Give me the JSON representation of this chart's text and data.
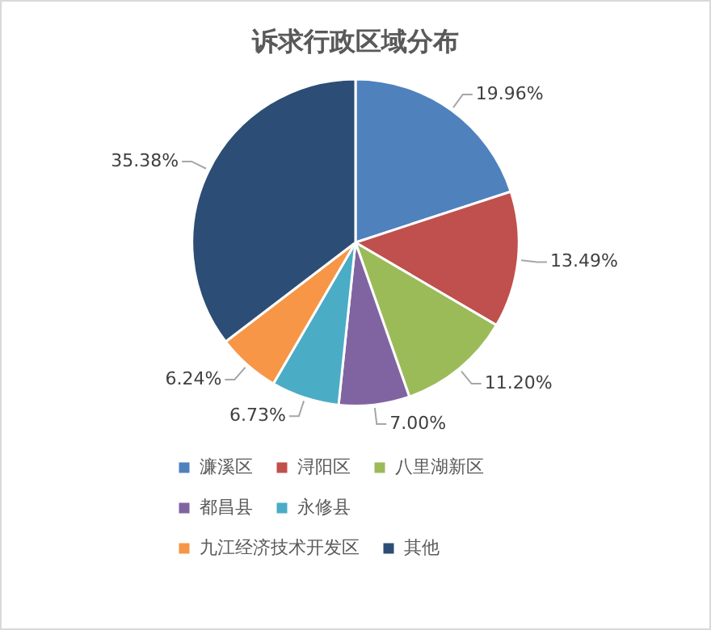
{
  "chart_data": {
    "type": "pie",
    "title": "诉求行政区域分布",
    "categories": [
      "濂溪区",
      "浔阳区",
      "八里湖新区",
      "都昌县",
      "永修县",
      "九江经济技术开发区",
      "其他"
    ],
    "values": [
      19.96,
      13.49,
      11.2,
      7.0,
      6.73,
      6.24,
      35.38
    ],
    "value_labels": [
      "19.96%",
      "13.49%",
      "11.20%",
      "7.00%",
      "6.73%",
      "6.24%",
      "35.38%"
    ],
    "colors": [
      "#4f81bd",
      "#c0504d",
      "#9bbb59",
      "#8064a2",
      "#4bacc6",
      "#f79646",
      "#2c4d75"
    ],
    "legend": "bottom"
  }
}
